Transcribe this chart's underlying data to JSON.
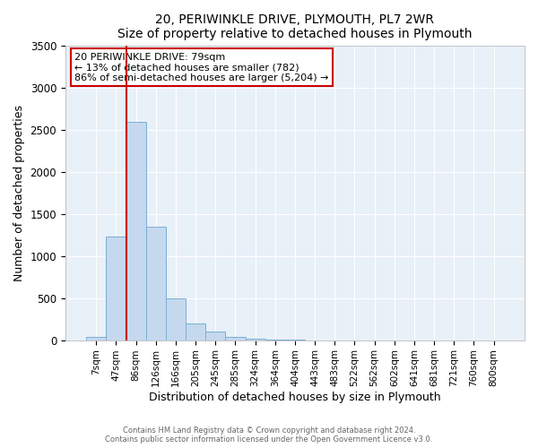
{
  "title": "20, PERIWINKLE DRIVE, PLYMOUTH, PL7 2WR",
  "subtitle": "Size of property relative to detached houses in Plymouth",
  "xlabel": "Distribution of detached houses by size in Plymouth",
  "ylabel": "Number of detached properties",
  "bar_labels": [
    "7sqm",
    "47sqm",
    "86sqm",
    "126sqm",
    "166sqm",
    "205sqm",
    "245sqm",
    "285sqm",
    "324sqm",
    "364sqm",
    "404sqm",
    "443sqm",
    "483sqm",
    "522sqm",
    "562sqm",
    "602sqm",
    "641sqm",
    "681sqm",
    "721sqm",
    "760sqm",
    "800sqm"
  ],
  "bar_values": [
    40,
    1230,
    2590,
    1350,
    500,
    195,
    100,
    40,
    18,
    5,
    2,
    0,
    0,
    0,
    0,
    0,
    0,
    0,
    0,
    0,
    0
  ],
  "bar_color": "#c5d8ee",
  "bar_edge_color": "#7aafd4",
  "marker_color": "#cc0000",
  "annotation_title": "20 PERIWINKLE DRIVE: 79sqm",
  "annotation_line1": "← 13% of detached houses are smaller (782)",
  "annotation_line2": "86% of semi-detached houses are larger (5,204) →",
  "annotation_box_color": "#cc0000",
  "ylim": [
    0,
    3500
  ],
  "yticks": [
    0,
    500,
    1000,
    1500,
    2000,
    2500,
    3000,
    3500
  ],
  "footer_line1": "Contains HM Land Registry data © Crown copyright and database right 2024.",
  "footer_line2": "Contains public sector information licensed under the Open Government Licence v3.0.",
  "background_color": "#e8f0f8",
  "grid_color": "#ffffff"
}
